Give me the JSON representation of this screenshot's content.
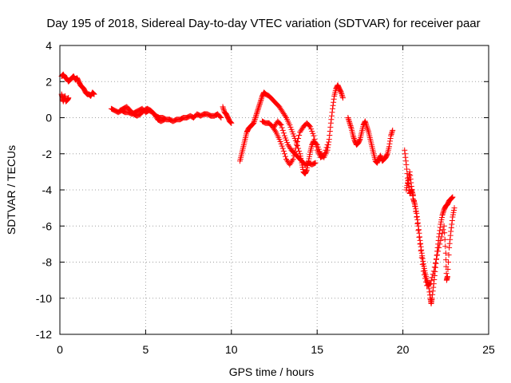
{
  "chart_data": {
    "type": "scatter",
    "title": "Day 195 of 2018, Sidereal Day-to-day VTEC variation (SDTVAR) for receiver paar",
    "xlabel": "GPS time / hours",
    "ylabel": "SDTVAR / TECUs",
    "xlim": [
      0,
      25
    ],
    "ylim": [
      -12,
      4
    ],
    "xticks": [
      0,
      5,
      10,
      15,
      20,
      25
    ],
    "yticks": [
      4,
      2,
      0,
      -2,
      -4,
      -6,
      -8,
      -10,
      -12
    ],
    "grid": true,
    "marker": "plus",
    "color": "#ff0000",
    "series": [
      {
        "name": "SDTVAR",
        "segments": [
          [
            [
              0.1,
              2.3
            ],
            [
              0.2,
              2.4
            ],
            [
              0.3,
              2.2
            ],
            [
              0.4,
              2.2
            ],
            [
              0.5,
              2.0
            ],
            [
              0.6,
              2.1
            ],
            [
              0.7,
              2.2
            ],
            [
              0.8,
              2.3
            ],
            [
              0.9,
              2.1
            ],
            [
              1.0,
              2.2
            ],
            [
              1.1,
              2.0
            ],
            [
              1.2,
              1.8
            ],
            [
              1.3,
              1.7
            ],
            [
              1.4,
              1.6
            ],
            [
              1.5,
              1.4
            ],
            [
              1.6,
              1.3
            ],
            [
              1.7,
              1.3
            ],
            [
              1.8,
              1.2
            ],
            [
              1.9,
              1.4
            ],
            [
              2.0,
              1.3
            ]
          ],
          [
            [
              0.1,
              1.3
            ],
            [
              0.15,
              1.1
            ],
            [
              0.2,
              0.9
            ],
            [
              0.3,
              1.2
            ],
            [
              0.35,
              0.9
            ],
            [
              0.45,
              1.0
            ],
            [
              0.5,
              1.1
            ]
          ],
          [
            [
              3.0,
              0.5
            ],
            [
              3.2,
              0.4
            ],
            [
              3.4,
              0.3
            ],
            [
              3.6,
              0.4
            ],
            [
              3.8,
              0.3
            ],
            [
              4.0,
              0.3
            ],
            [
              4.2,
              0.2
            ],
            [
              4.4,
              0.3
            ],
            [
              4.6,
              0.4
            ],
            [
              4.8,
              0.5
            ],
            [
              5.0,
              0.3
            ],
            [
              5.2,
              0.4
            ],
            [
              5.4,
              0.3
            ],
            [
              5.6,
              0.1
            ],
            [
              5.8,
              0.0
            ],
            [
              6.0,
              0.0
            ],
            [
              6.2,
              -0.1
            ],
            [
              6.4,
              -0.1
            ],
            [
              6.6,
              -0.2
            ],
            [
              6.8,
              -0.1
            ],
            [
              7.0,
              -0.1
            ],
            [
              7.2,
              0.0
            ],
            [
              7.4,
              0.0
            ],
            [
              7.6,
              0.1
            ],
            [
              7.8,
              0.0
            ],
            [
              8.0,
              0.2
            ],
            [
              8.2,
              0.1
            ],
            [
              8.4,
              0.2
            ],
            [
              8.6,
              0.2
            ],
            [
              8.8,
              0.1
            ],
            [
              9.0,
              0.1
            ],
            [
              9.2,
              0.2
            ],
            [
              9.4,
              0.0
            ]
          ],
          [
            [
              3.5,
              0.4
            ],
            [
              3.7,
              0.5
            ],
            [
              3.9,
              0.6
            ],
            [
              4.1,
              0.4
            ],
            [
              4.3,
              0.2
            ],
            [
              4.5,
              0.1
            ],
            [
              4.7,
              0.2
            ],
            [
              4.9,
              0.4
            ],
            [
              5.1,
              0.5
            ],
            [
              5.3,
              0.4
            ],
            [
              5.5,
              0.2
            ],
            [
              5.7,
              -0.1
            ],
            [
              5.9,
              -0.2
            ],
            [
              6.1,
              -0.1
            ]
          ],
          [
            [
              9.5,
              0.6
            ],
            [
              9.6,
              0.3
            ],
            [
              9.7,
              0.2
            ],
            [
              9.8,
              0.0
            ],
            [
              9.9,
              -0.2
            ],
            [
              10.0,
              -0.3
            ]
          ],
          [
            [
              10.5,
              -2.4
            ],
            [
              10.6,
              -2.0
            ],
            [
              10.7,
              -1.6
            ],
            [
              10.8,
              -1.2
            ],
            [
              10.9,
              -0.8
            ],
            [
              11.0,
              -0.6
            ],
            [
              11.1,
              -0.5
            ],
            [
              11.2,
              -0.4
            ],
            [
              11.3,
              -0.3
            ],
            [
              11.4,
              0.0
            ],
            [
              11.5,
              0.3
            ],
            [
              11.6,
              0.6
            ],
            [
              11.7,
              0.9
            ],
            [
              11.8,
              1.2
            ],
            [
              11.9,
              1.4
            ],
            [
              12.0,
              1.3
            ],
            [
              12.2,
              1.2
            ],
            [
              12.4,
              1.0
            ],
            [
              12.6,
              0.8
            ],
            [
              12.8,
              0.6
            ],
            [
              13.0,
              0.3
            ],
            [
              13.2,
              0.0
            ],
            [
              13.4,
              -0.4
            ],
            [
              13.6,
              -0.9
            ],
            [
              13.8,
              -1.4
            ],
            [
              14.0,
              -2.0
            ],
            [
              14.1,
              -2.5
            ],
            [
              14.2,
              -3.0
            ],
            [
              14.3,
              -3.1
            ],
            [
              14.4,
              -2.9
            ],
            [
              14.5,
              -2.4
            ],
            [
              14.6,
              -1.9
            ],
            [
              14.7,
              -1.5
            ],
            [
              14.8,
              -1.3
            ],
            [
              15.0,
              -1.5
            ],
            [
              15.2,
              -2.0
            ],
            [
              15.4,
              -2.2
            ],
            [
              15.6,
              -1.8
            ],
            [
              15.7,
              -1.2
            ],
            [
              15.8,
              -0.3
            ],
            [
              15.9,
              0.5
            ],
            [
              16.0,
              1.2
            ],
            [
              16.1,
              1.6
            ],
            [
              16.2,
              1.8
            ],
            [
              16.3,
              1.6
            ],
            [
              16.4,
              1.4
            ],
            [
              16.5,
              1.1
            ]
          ],
          [
            [
              11.8,
              -0.2
            ],
            [
              12.0,
              -0.3
            ],
            [
              12.2,
              -0.3
            ],
            [
              12.4,
              -0.5
            ],
            [
              12.6,
              -0.8
            ],
            [
              12.8,
              -1.2
            ],
            [
              13.0,
              -1.7
            ],
            [
              13.2,
              -2.3
            ],
            [
              13.4,
              -2.6
            ],
            [
              13.6,
              -2.3
            ],
            [
              13.8,
              -1.5
            ],
            [
              14.0,
              -0.8
            ],
            [
              14.2,
              -0.5
            ],
            [
              14.4,
              -0.3
            ],
            [
              14.6,
              -0.5
            ],
            [
              14.8,
              -1.0
            ],
            [
              15.0,
              -1.8
            ],
            [
              15.2,
              -2.2
            ],
            [
              15.4,
              -2.1
            ],
            [
              15.6,
              -1.5
            ]
          ],
          [
            [
              12.5,
              -0.5
            ],
            [
              12.7,
              -0.2
            ],
            [
              12.9,
              -0.4
            ],
            [
              13.1,
              -1.0
            ],
            [
              13.3,
              -1.5
            ],
            [
              13.5,
              -1.8
            ],
            [
              13.7,
              -2.0
            ],
            [
              13.9,
              -2.2
            ],
            [
              14.1,
              -2.4
            ],
            [
              14.3,
              -2.6
            ],
            [
              14.5,
              -2.5
            ],
            [
              14.7,
              -2.6
            ],
            [
              14.9,
              -2.5
            ]
          ],
          [
            [
              16.8,
              0.0
            ],
            [
              16.9,
              -0.3
            ],
            [
              17.0,
              -0.6
            ],
            [
              17.1,
              -1.0
            ],
            [
              17.2,
              -1.3
            ],
            [
              17.3,
              -1.5
            ],
            [
              17.4,
              -1.4
            ],
            [
              17.5,
              -1.2
            ],
            [
              17.6,
              -0.8
            ],
            [
              17.7,
              -0.4
            ],
            [
              17.8,
              -0.2
            ],
            [
              17.9,
              -0.5
            ],
            [
              18.0,
              -0.8
            ],
            [
              18.1,
              -1.2
            ],
            [
              18.2,
              -1.6
            ],
            [
              18.3,
              -2.0
            ],
            [
              18.4,
              -2.4
            ],
            [
              18.5,
              -2.5
            ],
            [
              18.6,
              -2.3
            ],
            [
              18.7,
              -2.1
            ],
            [
              18.8,
              -2.4
            ],
            [
              18.9,
              -2.3
            ],
            [
              19.0,
              -2.2
            ],
            [
              19.1,
              -2.0
            ],
            [
              19.2,
              -1.6
            ],
            [
              19.3,
              -1.0
            ],
            [
              19.4,
              -0.7
            ]
          ],
          [
            [
              20.1,
              -1.8
            ],
            [
              20.2,
              -2.6
            ],
            [
              20.3,
              -3.6
            ],
            [
              20.4,
              -3.0
            ],
            [
              20.5,
              -3.8
            ],
            [
              20.6,
              -4.5
            ],
            [
              20.7,
              -4.8
            ],
            [
              20.8,
              -5.3
            ],
            [
              20.9,
              -6.0
            ],
            [
              21.0,
              -6.8
            ],
            [
              21.1,
              -7.5
            ],
            [
              21.2,
              -8.1
            ],
            [
              21.3,
              -8.6
            ],
            [
              21.4,
              -9.0
            ],
            [
              21.5,
              -9.3
            ],
            [
              21.6,
              -10.0
            ],
            [
              21.65,
              -10.3
            ],
            [
              21.7,
              -10.0
            ],
            [
              21.8,
              -9.2
            ],
            [
              21.9,
              -8.3
            ],
            [
              22.0,
              -7.4
            ],
            [
              22.1,
              -6.6
            ],
            [
              22.2,
              -5.9
            ],
            [
              22.3,
              -5.4
            ],
            [
              22.4,
              -5.1
            ],
            [
              22.5,
              -4.9
            ],
            [
              22.6,
              -4.8
            ],
            [
              22.7,
              -4.6
            ],
            [
              22.8,
              -4.5
            ],
            [
              22.9,
              -4.4
            ]
          ],
          [
            [
              20.2,
              -4.0
            ],
            [
              20.3,
              -3.5
            ],
            [
              20.4,
              -4.2
            ],
            [
              20.5,
              -4.0
            ],
            [
              20.6,
              -4.3
            ],
            [
              20.8,
              -5.5
            ],
            [
              21.0,
              -7.0
            ],
            [
              21.2,
              -8.5
            ],
            [
              21.4,
              -9.3
            ],
            [
              21.6,
              -9.2
            ],
            [
              21.8,
              -8.5
            ],
            [
              22.0,
              -7.6
            ],
            [
              22.2,
              -6.8
            ],
            [
              22.4,
              -6.0
            ],
            [
              22.5,
              -7.5
            ],
            [
              22.55,
              -9.0
            ],
            [
              22.6,
              -8.8
            ],
            [
              22.7,
              -7.2
            ],
            [
              22.8,
              -6.3
            ],
            [
              22.9,
              -5.5
            ],
            [
              23.0,
              -5.0
            ]
          ]
        ]
      }
    ]
  }
}
